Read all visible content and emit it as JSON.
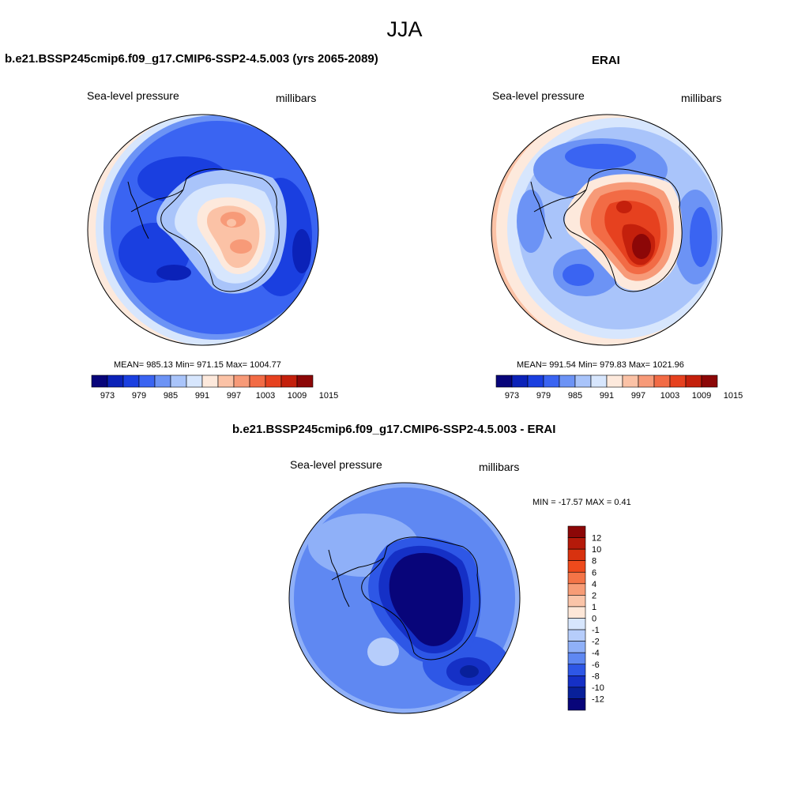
{
  "page_title": "JJA",
  "panels": [
    {
      "title": "b.e21.BSSP245cmip6.f09_g17.CMIP6-SSP2-4.5.003 (yrs 2065-2089)",
      "left_label": "Sea-level pressure",
      "right_label": "millibars",
      "stats": "MEAN= 985.13  Min= 971.15  Max= 1004.77"
    },
    {
      "title": "ERAI",
      "left_label": "Sea-level pressure",
      "right_label": "millibars",
      "stats": "MEAN= 991.54  Min= 979.83  Max= 1021.96"
    },
    {
      "title": "b.e21.BSSP245cmip6.f09_g17.CMIP6-SSP2-4.5.003 - ERAI",
      "left_label": "Sea-level pressure",
      "right_label": "millibars",
      "stats": "MIN = -17.57 MAX =   0.41"
    }
  ],
  "slp_colorbar": {
    "tick_labels": [
      "973",
      "979",
      "985",
      "991",
      "997",
      "1003",
      "1009",
      "1015"
    ],
    "colors": [
      "#08057a",
      "#0b22b8",
      "#1a3fe0",
      "#3a64f2",
      "#6c93f5",
      "#a9c4fa",
      "#d7e6fd",
      "#fde9dc",
      "#fbc2a6",
      "#f79a78",
      "#f26b45",
      "#e6411f",
      "#c4200c",
      "#8c0707"
    ]
  },
  "diff_colorbar": {
    "tick_labels": [
      "12",
      "10",
      "8",
      "6",
      "4",
      "2",
      "1",
      "0",
      "-1",
      "-2",
      "-4",
      "-6",
      "-8",
      "-10",
      "-12"
    ],
    "colors": [
      "#8c0707",
      "#b51a0a",
      "#d8320f",
      "#ee4a1c",
      "#f47447",
      "#f79c76",
      "#fac4a8",
      "#fde7d8",
      "#d7e6fd",
      "#b6cdfb",
      "#8fb0f8",
      "#5f88f2",
      "#2e57e6",
      "#1530c6",
      "#08209a",
      "#08057a"
    ]
  }
}
